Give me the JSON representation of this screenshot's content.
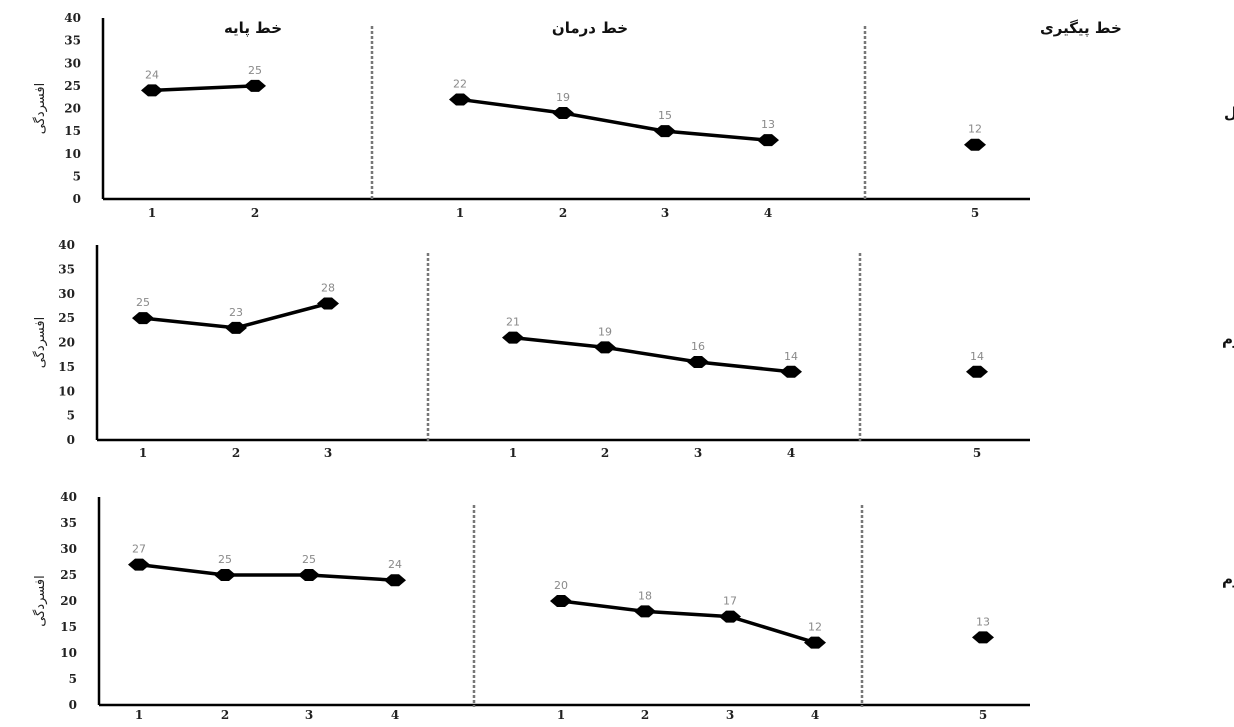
{
  "phase_labels": [
    "خط پایه",
    "خط درمان",
    "خط پیگیری"
  ],
  "colors": {
    "series": "#000000",
    "data_label": "#8a8a8a",
    "divider": "#777777"
  },
  "chart_data": [
    {
      "type": "line",
      "client_label": "مراجع اول",
      "ylabel": "افسردگی",
      "ylim": [
        0,
        40
      ],
      "yticks": [
        0,
        5,
        10,
        15,
        20,
        25,
        30,
        35,
        40
      ],
      "phases": [
        {
          "name": "خط پایه",
          "x": [
            1,
            2
          ],
          "values": [
            24,
            25
          ]
        },
        {
          "name": "خط درمان",
          "x": [
            1,
            2,
            3,
            4
          ],
          "values": [
            22,
            19,
            15,
            13
          ]
        },
        {
          "name": "خط پیگیری",
          "x": [
            5
          ],
          "values": [
            12
          ]
        }
      ]
    },
    {
      "type": "line",
      "client_label": "مراجع دوم",
      "ylabel": "افسردگی",
      "ylim": [
        0,
        40
      ],
      "yticks": [
        0,
        5,
        10,
        15,
        20,
        25,
        30,
        35,
        40
      ],
      "phases": [
        {
          "name": "خط پایه",
          "x": [
            1,
            2,
            3
          ],
          "values": [
            25,
            23,
            28
          ]
        },
        {
          "name": "خط درمان",
          "x": [
            1,
            2,
            3,
            4
          ],
          "values": [
            21,
            19,
            16,
            14
          ]
        },
        {
          "name": "خط پیگیری",
          "x": [
            5
          ],
          "values": [
            14
          ]
        }
      ]
    },
    {
      "type": "line",
      "client_label": "مراجع سوم",
      "ylabel": "افسردگی",
      "ylim": [
        0,
        40
      ],
      "yticks": [
        0,
        5,
        10,
        15,
        20,
        25,
        30,
        35,
        40
      ],
      "phases": [
        {
          "name": "خط پایه",
          "x": [
            1,
            2,
            3,
            4
          ],
          "values": [
            27,
            25,
            25,
            24
          ]
        },
        {
          "name": "خط درمان",
          "x": [
            1,
            2,
            3,
            4
          ],
          "values": [
            20,
            18,
            17,
            12
          ]
        },
        {
          "name": "خط پیگیری",
          "x": [
            5
          ],
          "values": [
            13
          ]
        }
      ]
    }
  ]
}
